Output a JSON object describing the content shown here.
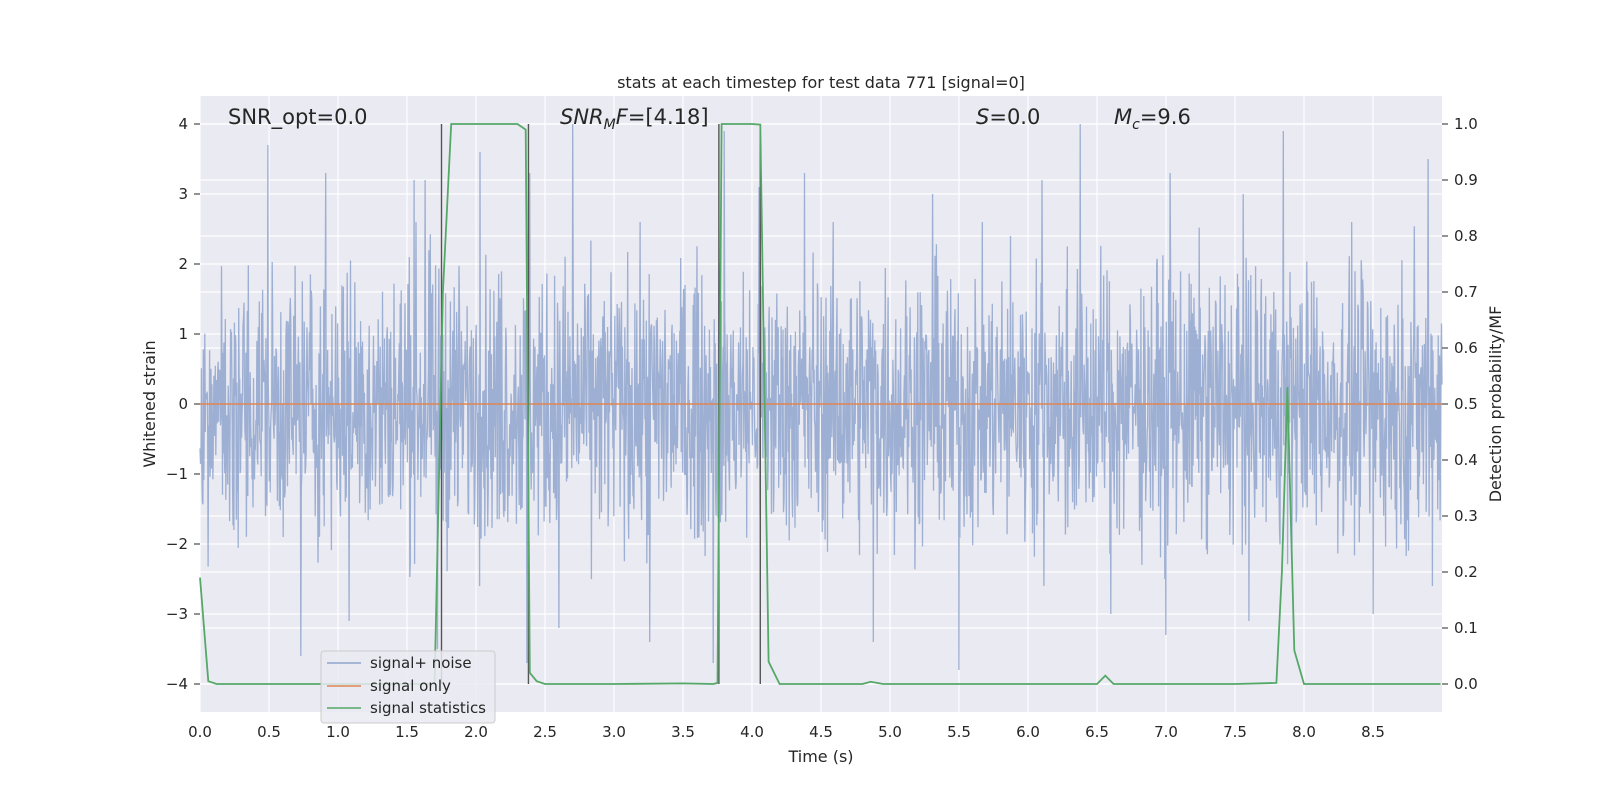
{
  "chart_data": {
    "type": "line",
    "title": "stats at each timestep for test data 771 [signal=0]",
    "xlabel": "Time (s)",
    "ylabel_left": "Whitened strain",
    "ylabel_right": "Detection probability/MF",
    "xlim": [
      0,
      9
    ],
    "ylim_left": [
      -4.4,
      4.4
    ],
    "ylim_right": [
      -0.05,
      1.05
    ],
    "x_ticks": [
      "0.0",
      "0.5",
      "1.0",
      "1.5",
      "2.0",
      "2.5",
      "3.0",
      "3.5",
      "4.0",
      "4.5",
      "5.0",
      "5.5",
      "6.0",
      "6.5",
      "7.0",
      "7.5",
      "8.0",
      "8.5"
    ],
    "y_ticks_left": [
      "−4",
      "−3",
      "−2",
      "−1",
      "0",
      "1",
      "2",
      "3",
      "4"
    ],
    "y_ticks_right": [
      "0.0",
      "0.1",
      "0.2",
      "0.3",
      "0.4",
      "0.5",
      "0.6",
      "0.7",
      "0.8",
      "0.9",
      "1.0"
    ],
    "annotations": {
      "snr_opt": "SNR_opt=0.0",
      "snr_mf_symbol": "SNR",
      "snr_mf_sub": "M",
      "snr_mf_tail": "F",
      "snr_mf_value": "=[4.18]",
      "s_symbol": "S",
      "s_value": "=0.0",
      "mc_symbol": "M",
      "mc_sub": "c",
      "mc_value": "=9.6"
    },
    "vertical_lines_x": [
      1.75,
      2.38,
      3.76,
      4.06
    ],
    "series": [
      {
        "name": "signal+ noise",
        "color": "#8fa4cc",
        "kind": "noise",
        "typical_range": [
          -1.7,
          1.7
        ],
        "peak_values": [
          [
            0.49,
            3.7
          ],
          [
            0.91,
            3.3
          ],
          [
            1.55,
            3.2
          ],
          [
            1.63,
            3.2
          ],
          [
            2.03,
            3.6
          ],
          [
            2.39,
            3.3
          ],
          [
            2.7,
            4.0
          ],
          [
            3.8,
            3.9
          ],
          [
            4.05,
            3.1
          ],
          [
            4.38,
            3.3
          ],
          [
            5.31,
            3.0
          ],
          [
            6.1,
            3.2
          ],
          [
            6.38,
            4.0
          ],
          [
            7.03,
            3.3
          ],
          [
            7.56,
            3.0
          ],
          [
            7.85,
            3.9
          ],
          [
            8.9,
            3.5
          ],
          [
            0.73,
            -3.6
          ],
          [
            1.08,
            -3.1
          ],
          [
            1.72,
            -3.5
          ],
          [
            2.37,
            -3.7
          ],
          [
            2.6,
            -3.2
          ],
          [
            3.26,
            -3.4
          ],
          [
            3.72,
            -3.7
          ],
          [
            4.88,
            -3.4
          ],
          [
            5.5,
            -3.8
          ],
          [
            6.6,
            -3.0
          ],
          [
            7.0,
            -3.3
          ],
          [
            7.6,
            -3.1
          ],
          [
            8.5,
            -3.0
          ]
        ]
      },
      {
        "name": "signal only",
        "color": "#dd8452",
        "kind": "constant",
        "value": 0
      },
      {
        "name": "signal statistics",
        "color": "#55a868",
        "kind": "line",
        "x": [
          0.0,
          0.06,
          0.12,
          0.5,
          1.0,
          1.5,
          1.7,
          1.76,
          1.82,
          2.0,
          2.3,
          2.36,
          2.39,
          2.44,
          2.5,
          3.0,
          3.5,
          3.72,
          3.75,
          3.78,
          3.8,
          4.0,
          4.06,
          4.12,
          4.2,
          4.5,
          4.8,
          4.86,
          4.95,
          5.5,
          6.0,
          6.5,
          6.56,
          6.62,
          6.7,
          7.0,
          7.5,
          7.8,
          7.84,
          7.88,
          7.93,
          8.0,
          8.5,
          8.99
        ],
        "y": [
          0.19,
          0.005,
          0.0,
          0.0,
          0.0,
          0.0,
          0.0,
          0.7,
          1.0,
          1.0,
          1.0,
          0.99,
          0.02,
          0.005,
          0.0,
          0.0,
          0.001,
          0.0,
          0.002,
          1.0,
          1.0,
          1.0,
          0.999,
          0.04,
          0.0,
          0.0,
          0.0,
          0.004,
          0.0,
          0.0,
          0.0,
          0.0,
          0.015,
          0.0,
          0.0,
          0.0,
          0.0,
          0.002,
          0.2,
          0.53,
          0.06,
          0.0,
          0.0,
          0.0
        ]
      }
    ],
    "legend_position": "lower-left",
    "grid": true
  }
}
